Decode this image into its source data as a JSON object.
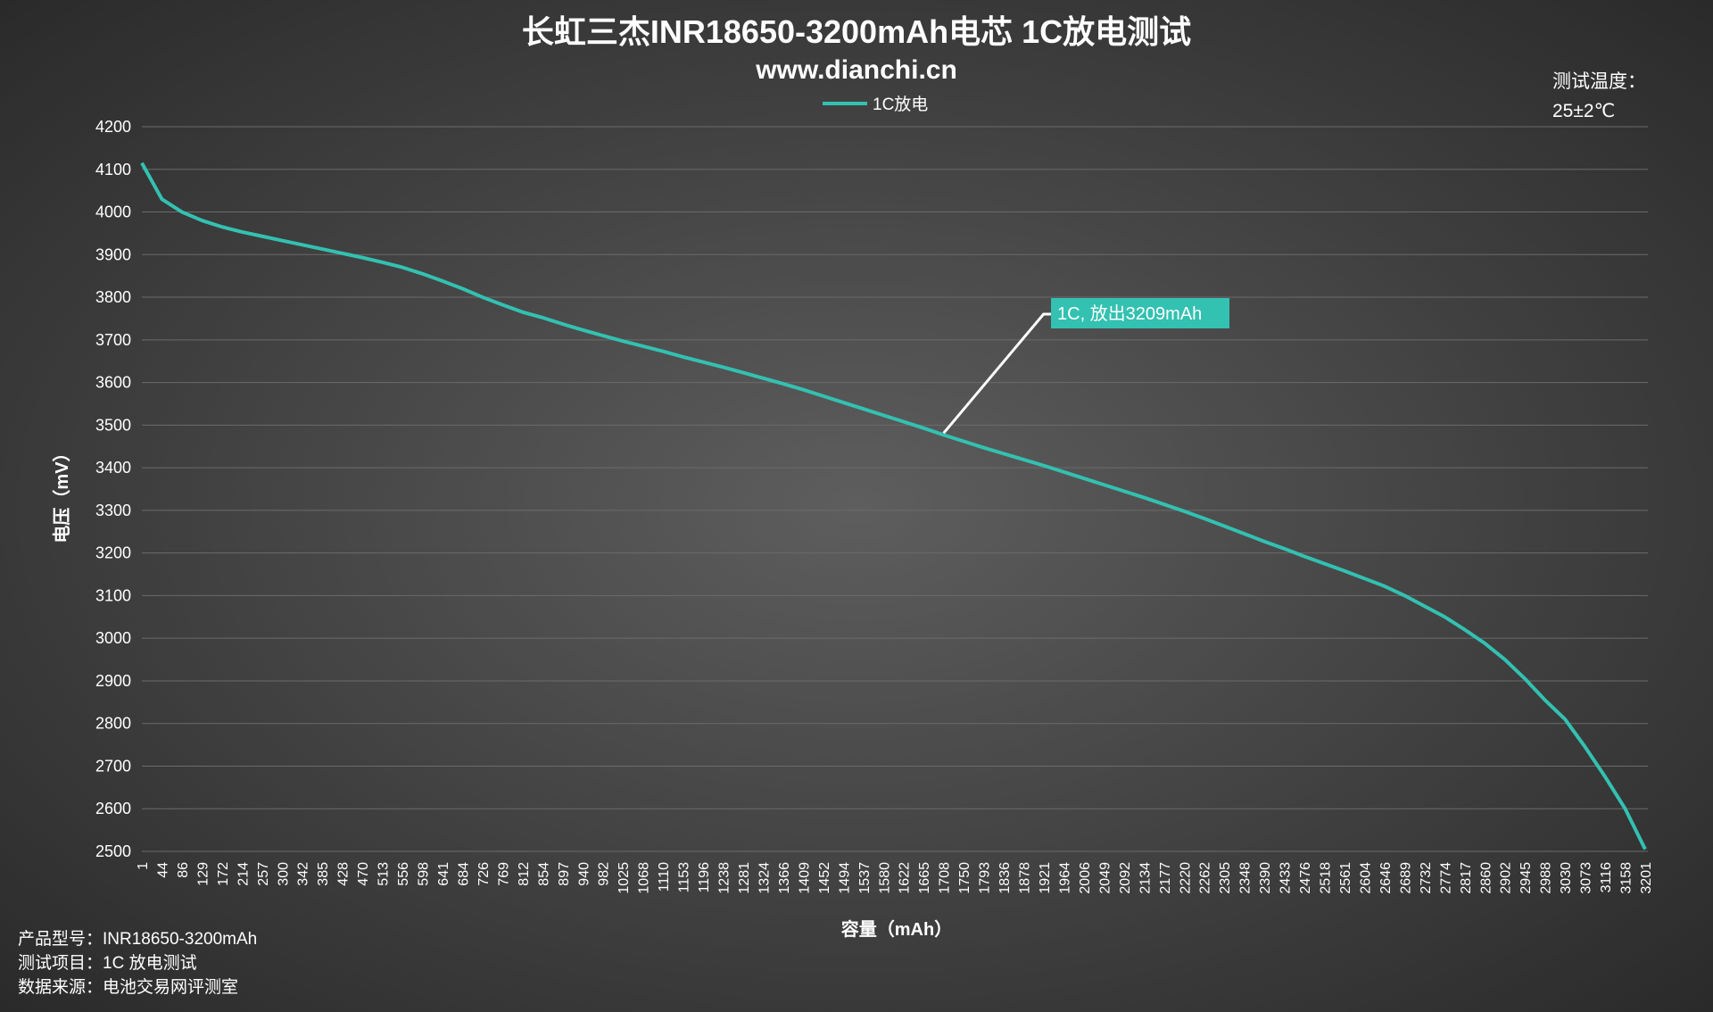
{
  "chart_data": {
    "type": "line",
    "title": "长虹三杰INR18650-3200mAh电芯 1C放电测试",
    "subtitle": "www.dianchi.cn",
    "temperature_label": "测试温度：",
    "temperature_value": "25±2℃",
    "y_label": "电压（mV）",
    "x_label": "容量（mAh）",
    "annotation": "1C, 放出3209mAh",
    "notes": [
      "产品型号：INR18650-3200mAh",
      "测试项目：1C 放电测试",
      "数据来源：电池交易网评测室"
    ],
    "categories": [
      "1",
      "44",
      "86",
      "129",
      "172",
      "214",
      "257",
      "300",
      "342",
      "385",
      "428",
      "470",
      "513",
      "556",
      "598",
      "641",
      "684",
      "726",
      "769",
      "812",
      "854",
      "897",
      "940",
      "982",
      "1025",
      "1068",
      "1110",
      "1153",
      "1196",
      "1238",
      "1281",
      "1324",
      "1366",
      "1409",
      "1452",
      "1494",
      "1537",
      "1580",
      "1622",
      "1665",
      "1708",
      "1750",
      "1793",
      "1836",
      "1878",
      "1921",
      "1964",
      "2006",
      "2049",
      "2092",
      "2134",
      "2177",
      "2220",
      "2262",
      "2305",
      "2348",
      "2390",
      "2433",
      "2476",
      "2518",
      "2561",
      "2604",
      "2646",
      "2689",
      "2732",
      "2774",
      "2817",
      "2860",
      "2902",
      "2945",
      "2988",
      "3030",
      "3073",
      "3116",
      "3158",
      "3201"
    ],
    "series": [
      {
        "name": "1C放电",
        "color": "#33c1b1",
        "values": [
          4115,
          4030,
          4000,
          3980,
          3965,
          3953,
          3943,
          3933,
          3923,
          3913,
          3903,
          3893,
          3882,
          3870,
          3855,
          3838,
          3820,
          3800,
          3782,
          3765,
          3752,
          3737,
          3723,
          3710,
          3697,
          3685,
          3673,
          3660,
          3648,
          3636,
          3623,
          3610,
          3597,
          3583,
          3568,
          3553,
          3538,
          3523,
          3508,
          3493,
          3477,
          3462,
          3447,
          3433,
          3419,
          3405,
          3390,
          3375,
          3360,
          3345,
          3330,
          3314,
          3298,
          3281,
          3263,
          3245,
          3227,
          3210,
          3192,
          3175,
          3158,
          3140,
          3122,
          3100,
          3075,
          3050,
          3020,
          2988,
          2950,
          2905,
          2855,
          2810,
          2745,
          2675,
          2600,
          2505
        ]
      }
    ],
    "ylim": [
      2500,
      4200
    ],
    "yticks": [
      2500,
      2600,
      2700,
      2800,
      2900,
      3000,
      3100,
      3200,
      3300,
      3400,
      3500,
      3600,
      3700,
      3800,
      3900,
      4000,
      4100,
      4200
    ],
    "grid": true,
    "legend": "top"
  }
}
